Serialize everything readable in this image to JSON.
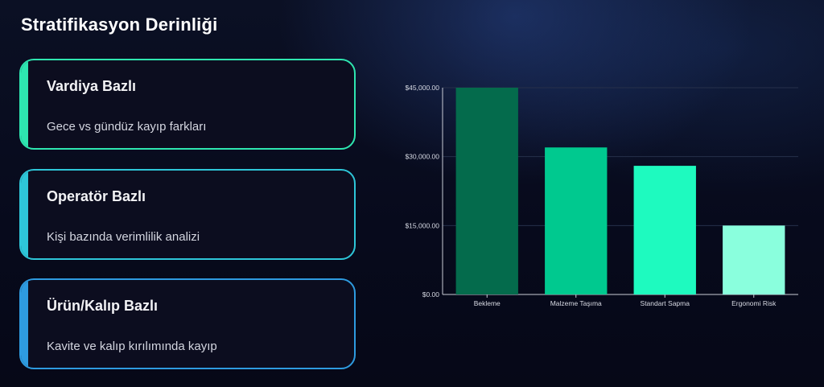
{
  "page": {
    "title": "Stratifikasyon Derinliği"
  },
  "cards": [
    {
      "title": "Vardiya Bazlı",
      "description": "Gece vs gündüz kayıp farkları",
      "color": "#2ee6b0"
    },
    {
      "title": "Operatör Bazlı",
      "description": "Kişi bazında verimlilik analizi",
      "color": "#2ec6d8"
    },
    {
      "title": "Ürün/Kalıp Bazlı",
      "description": "Kavite ve kalıp kırılımında kayıp",
      "color": "#2e9be0"
    }
  ],
  "chart_data": {
    "type": "bar",
    "categories": [
      "Bekleme",
      "Malzeme Taşıma",
      "Standart Sapma",
      "Ergonomi Risk"
    ],
    "values": [
      45000,
      32000,
      28000,
      15000
    ],
    "colors": [
      "#046b4c",
      "#00c98f",
      "#1efabf",
      "#8affdd"
    ],
    "y_ticks": [
      "$0.00",
      "$15,000.00",
      "$30,000.00",
      "$45,000.00"
    ],
    "y_tick_values": [
      0,
      15000,
      30000,
      45000
    ],
    "ylim": [
      0,
      45000
    ],
    "grid": true,
    "title": "",
    "xlabel": "",
    "ylabel": ""
  }
}
